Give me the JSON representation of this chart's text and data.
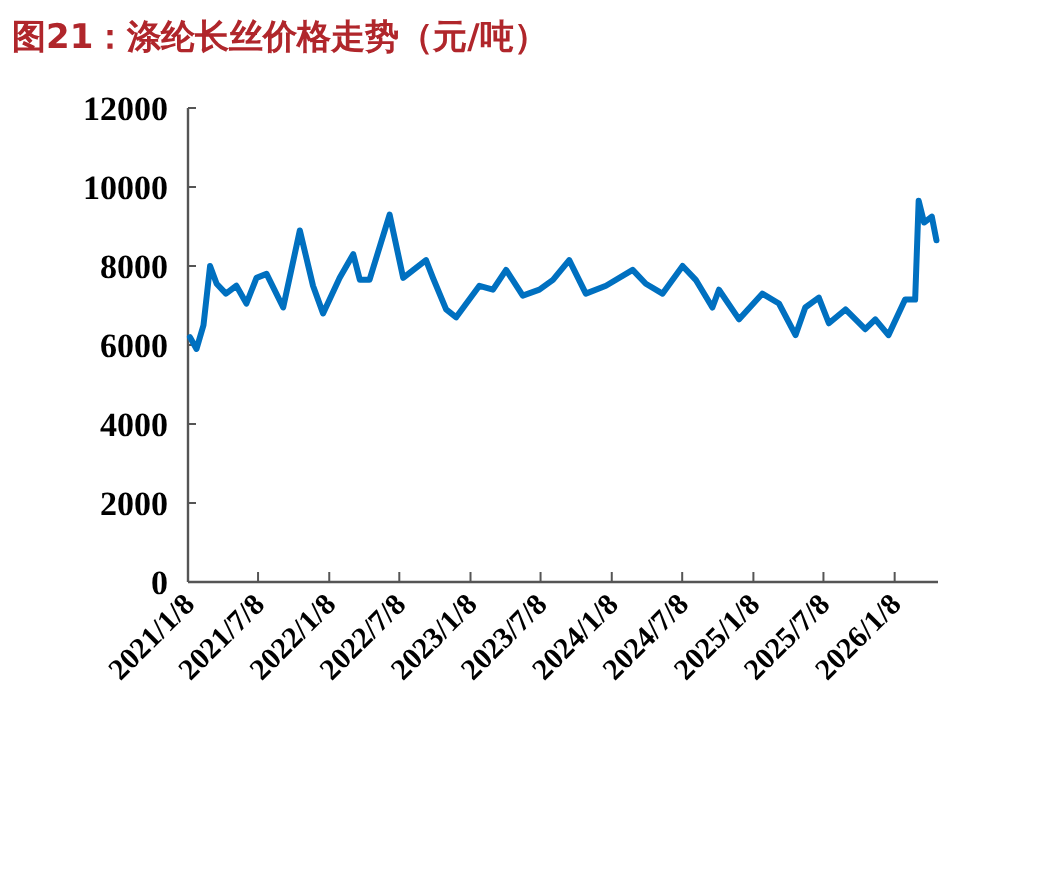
{
  "chart_data": {
    "type": "line",
    "title": "图21：涤纶长丝价格走势（元/吨）",
    "x": [
      "2021-01-13",
      "2021-01-30",
      "2021-02-17",
      "2021-03-06",
      "2021-03-23",
      "2021-04-16",
      "2021-05-13",
      "2021-06-08",
      "2021-07-04",
      "2021-07-30",
      "2021-09-11",
      "2021-10-24",
      "2021-11-27",
      "2021-12-23",
      "2022-02-04",
      "2022-03-11",
      "2022-03-28",
      "2022-04-22",
      "2022-06-13",
      "2022-07-18",
      "2022-09-15",
      "2022-10-03",
      "2022-11-06",
      "2022-12-02",
      "2023-01-31",
      "2023-03-07",
      "2023-04-10",
      "2023-05-23",
      "2023-07-05",
      "2023-08-09",
      "2023-09-20",
      "2023-11-02",
      "2023-12-24",
      "2024-03-02",
      "2024-04-05",
      "2024-05-18",
      "2024-07-09",
      "2024-08-12",
      "2024-09-24",
      "2024-10-11",
      "2024-12-02",
      "2025-01-31",
      "2025-03-15",
      "2025-04-27",
      "2025-05-22",
      "2025-06-26",
      "2025-07-22",
      "2025-09-03",
      "2025-10-24",
      "2025-11-19",
      "2025-12-23",
      "2026-02-04",
      "2026-03-02",
      "2026-03-11",
      "2026-03-25",
      "2026-04-14",
      "2026-04-26"
    ],
    "series": [
      {
        "color": "#0070c0",
        "values": [
          6200,
          5900,
          6500,
          8000,
          7550,
          7300,
          7500,
          7050,
          7700,
          7800,
          6950,
          8900,
          7500,
          6800,
          7700,
          8300,
          7650,
          7650,
          9300,
          7700,
          8150,
          7700,
          6900,
          6700,
          7500,
          7400,
          7900,
          7250,
          7400,
          7650,
          8150,
          7300,
          7500,
          7900,
          7550,
          7300,
          8000,
          7650,
          6950,
          7400,
          6650,
          7300,
          7050,
          6250,
          6950,
          7200,
          6550,
          6900,
          6400,
          6650,
          6250,
          7150,
          7150,
          9650,
          9100,
          9250,
          8650
        ]
      }
    ],
    "xlim": [
      "2021-01-08",
      "2026-04-30"
    ],
    "xticks": [
      {
        "value": "2021-01-08",
        "label": "2021/1/8"
      },
      {
        "value": "2021-07-08",
        "label": "2021/7/8"
      },
      {
        "value": "2022-01-08",
        "label": "2022/1/8"
      },
      {
        "value": "2022-07-08",
        "label": "2022/7/8"
      },
      {
        "value": "2023-01-08",
        "label": "2023/1/8"
      },
      {
        "value": "2023-07-08",
        "label": "2023/7/8"
      },
      {
        "value": "2024-01-08",
        "label": "2024/1/8"
      },
      {
        "value": "2024-07-08",
        "label": "2024/7/8"
      },
      {
        "value": "2025-01-08",
        "label": "2025/1/8"
      },
      {
        "value": "2025-07-08",
        "label": "2025/7/8"
      },
      {
        "value": "2026-01-08",
        "label": "2026/1/8"
      }
    ],
    "ylim": [
      0,
      12000
    ],
    "yticks": [
      0,
      2000,
      4000,
      6000,
      8000,
      10000,
      12000
    ],
    "grid": false,
    "marker": "none",
    "line_style": "solid"
  }
}
